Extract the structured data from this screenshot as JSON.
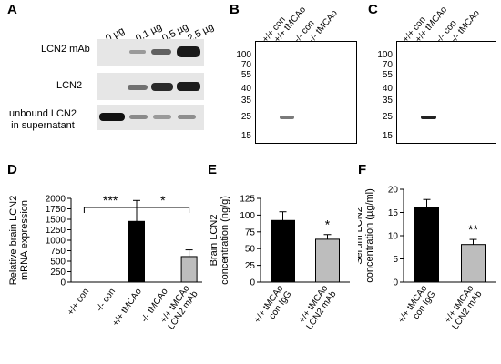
{
  "panels": {
    "A": {
      "label": "A",
      "doses": [
        "0 µg",
        "0.1 µg",
        "0.5 µg",
        "2.5 µg"
      ],
      "rows": [
        "LCN2 mAb",
        "LCN2",
        "unbound LCN2\nin supernatant"
      ]
    },
    "B": {
      "label": "B",
      "lanes": [
        "+/+ con",
        "+/+ tMCAo",
        "-/- con",
        "-/- tMCAo"
      ],
      "ticks": [
        "100",
        "70",
        "55",
        "40",
        "35",
        "25",
        "15"
      ]
    },
    "C": {
      "label": "C",
      "lanes": [
        "+/+ con",
        "+/+ tMCAo",
        "-/- con",
        "-/- tMCAo"
      ],
      "ticks": [
        "100",
        "70",
        "55",
        "40",
        "35",
        "25",
        "15"
      ]
    },
    "D": {
      "label": "D"
    },
    "E": {
      "label": "E"
    },
    "F": {
      "label": "F"
    }
  },
  "chart_data": [
    {
      "id": "D",
      "type": "bar",
      "ylabel": "Relative brain LCN2\nmRNA expression",
      "ylim": [
        0,
        2000
      ],
      "yticks": [
        0,
        250,
        500,
        750,
        1000,
        1250,
        1500,
        1750,
        2000
      ],
      "categories": [
        "+/+ con",
        "-/- con",
        "+/+ tMCAo",
        "-/- tMCAo",
        "+/+ tMCAo\nLCN2 mAb"
      ],
      "values": [
        0,
        0,
        1450,
        0,
        610
      ],
      "errors": [
        0,
        0,
        500,
        0,
        160
      ],
      "colors": [
        "#000000",
        "#000000",
        "#000000",
        "#bdbdbd",
        "#bdbdbd"
      ],
      "significance": [
        {
          "from": 0,
          "to": 2,
          "label": "***"
        },
        {
          "from": 2,
          "to": 4,
          "label": "*"
        }
      ]
    },
    {
      "id": "E",
      "type": "bar",
      "ylabel": "Brain LCN2\nconcentration (ng/g)",
      "ylim": [
        0,
        125
      ],
      "yticks": [
        0,
        25,
        50,
        75,
        100,
        125
      ],
      "categories": [
        "+/+ tMCAo\ncon IgG",
        "+/+ tMCAo\nLCN2 mAb"
      ],
      "values": [
        92,
        64
      ],
      "errors": [
        13,
        7
      ],
      "colors": [
        "#000000",
        "#bdbdbd"
      ],
      "stars": [
        "",
        "*"
      ]
    },
    {
      "id": "F",
      "type": "bar",
      "ylabel": "Serum LCN2\nconcentration (µg/ml)",
      "ylim": [
        0,
        20
      ],
      "yticks": [
        0,
        5,
        10,
        15,
        20
      ],
      "categories": [
        "+/+ tMCAo\ncon IgG",
        "+/+ tMCAo\nLCN2 mAb"
      ],
      "values": [
        16,
        8.1
      ],
      "errors": [
        1.8,
        1.1
      ],
      "colors": [
        "#000000",
        "#bdbdbd"
      ],
      "stars": [
        "",
        "**"
      ]
    }
  ]
}
